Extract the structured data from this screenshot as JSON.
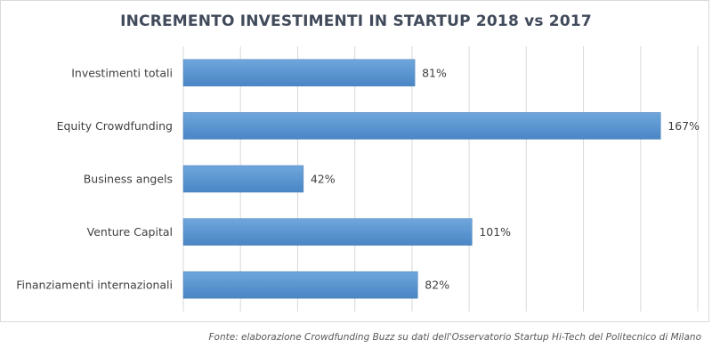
{
  "chart_data": {
    "type": "bar",
    "orientation": "horizontal",
    "title": "INCREMENTO  INVESTIMENTI  IN STARTUP 2018 vs 2017",
    "categories": [
      "Investimenti totali",
      "Equity Crowdfunding",
      "Business angels",
      "Venture Capital",
      "Finanziamenti internazionali"
    ],
    "values": [
      81,
      167,
      42,
      101,
      82
    ],
    "data_labels": [
      "81%",
      "167%",
      "42%",
      "101%",
      "82%"
    ],
    "xlim": [
      0,
      180
    ],
    "grid_step": 20,
    "grid": true,
    "xlabel": "",
    "ylabel": "",
    "bar_color": "#5b9bd5"
  },
  "source": "Fonte: elaborazione Crowdfunding Buzz su dati dell'Osservatorio Startup Hi-Tech del Politecnico di Milano"
}
